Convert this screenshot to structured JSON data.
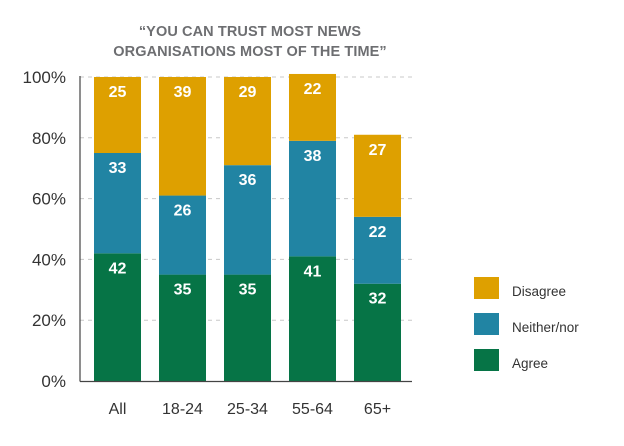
{
  "chart_data": {
    "type": "bar",
    "stacked": true,
    "title": "“YOU CAN TRUST MOST NEWS ORGANISATIONS MOST OF THE TIME”",
    "title_lines": [
      "“YOU CAN TRUST MOST NEWS",
      "ORGANISATIONS MOST OF THE TIME”"
    ],
    "xlabel": "",
    "ylabel": "",
    "ylim": [
      0,
      100
    ],
    "yticks": [
      0,
      20,
      40,
      60,
      80,
      100
    ],
    "ytick_labels": [
      "0%",
      "20%",
      "40%",
      "60%",
      "80%",
      "100%"
    ],
    "grid": true,
    "grid_style": "dashed",
    "categories": [
      "All",
      "18-24",
      "25-34",
      "55-64",
      "65+"
    ],
    "series": [
      {
        "name": "Agree",
        "color": "#067446",
        "values": [
          42,
          35,
          35,
          41,
          32
        ]
      },
      {
        "name": "Neither/nor",
        "color": "#2184a3",
        "values": [
          33,
          26,
          36,
          38,
          22
        ]
      },
      {
        "name": "Disagree",
        "color": "#dea000",
        "values": [
          25,
          39,
          29,
          22,
          27
        ]
      }
    ],
    "legend": {
      "position": "right",
      "order": [
        "Disagree",
        "Neither/nor",
        "Agree"
      ]
    },
    "data_labels": true
  }
}
